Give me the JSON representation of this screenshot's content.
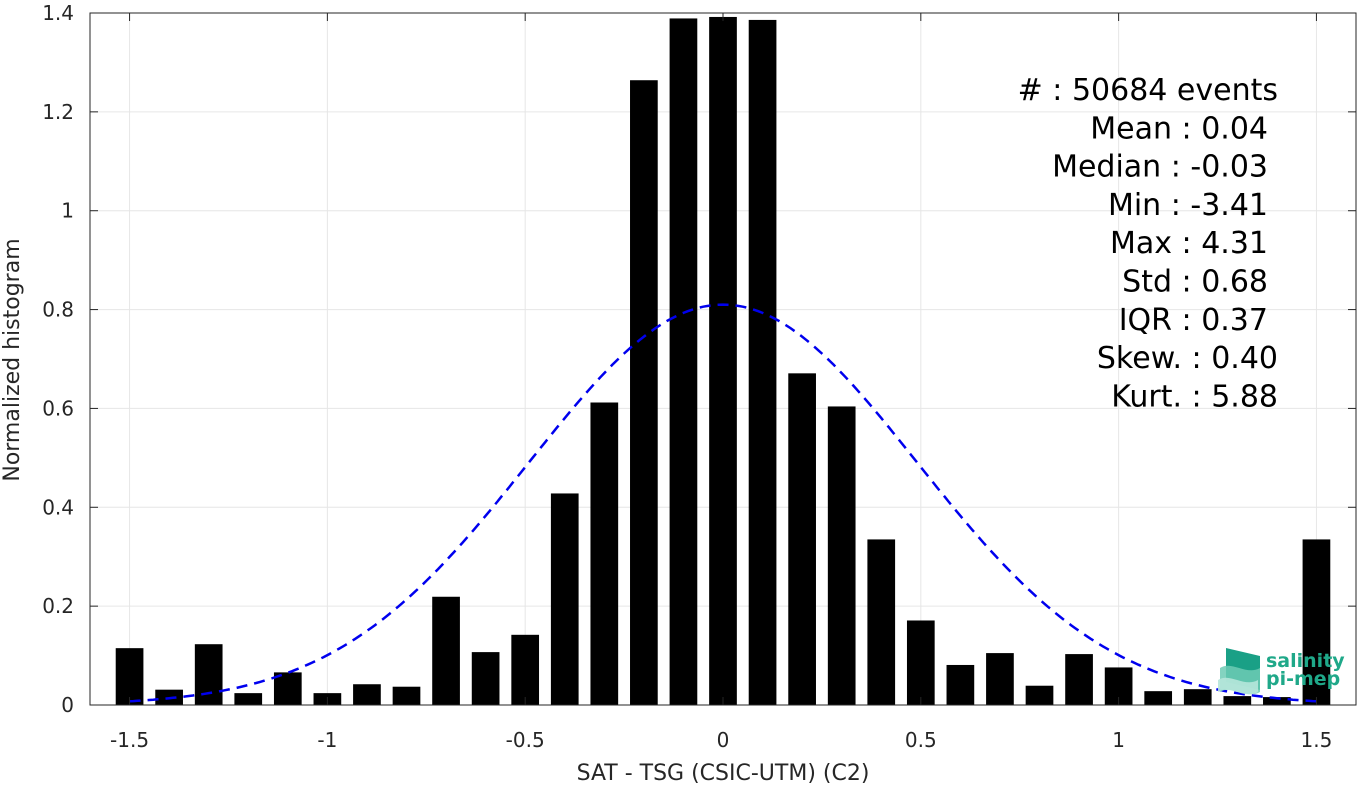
{
  "chart_data": {
    "type": "bar",
    "xlabel": "SAT - TSG (CSIC-UTM) (C2)",
    "ylabel": "Normalized histogram",
    "xlim": [
      -1.6,
      1.6
    ],
    "ylim": [
      0,
      1.4
    ],
    "xticks": [
      -1.5,
      -1,
      -0.5,
      0,
      0.5,
      1,
      1.5
    ],
    "xtick_labels": [
      "-1.5",
      "-1",
      "-0.5",
      "0",
      "0.5",
      "1",
      "1.5"
    ],
    "yticks": [
      0,
      0.2,
      0.4,
      0.6,
      0.8,
      1,
      1.2,
      1.4
    ],
    "ytick_labels": [
      "0",
      "0.2",
      "0.4",
      "0.6",
      "0.8",
      "1",
      "1.2",
      "1.4"
    ],
    "grid": true,
    "bar_width": 0.07,
    "bar_color": "#000000",
    "bars": {
      "x": [
        -1.5,
        -1.4,
        -1.3,
        -1.2,
        -1.1,
        -1.0,
        -0.9,
        -0.8,
        -0.7,
        -0.6,
        -0.5,
        -0.4,
        -0.3,
        -0.2,
        -0.1,
        0.0,
        0.1,
        0.2,
        0.3,
        0.4,
        0.5,
        0.6,
        0.7,
        0.8,
        0.9,
        1.0,
        1.1,
        1.2,
        1.3,
        1.4,
        1.5
      ],
      "values": [
        0.115,
        0.031,
        0.123,
        0.024,
        0.066,
        0.024,
        0.042,
        0.037,
        0.219,
        0.107,
        0.142,
        0.428,
        0.612,
        1.264,
        1.389,
        1.392,
        1.386,
        0.671,
        0.604,
        0.335,
        0.171,
        0.081,
        0.105,
        0.039,
        0.103,
        0.076,
        0.028,
        0.032,
        0.018,
        0.016,
        0.335
      ]
    },
    "fit_curve": {
      "type": "gaussian",
      "mean": 0.0,
      "std": 0.49,
      "peak": 0.81,
      "x_range": [
        -1.5,
        1.5
      ],
      "color": "#0000ee",
      "style": "dashed"
    },
    "stats": [
      {
        "label": "#  : 50684 events",
        "x": 1278
      },
      {
        "label": "Mean : 0.04",
        "x": 1268
      },
      {
        "label": "Median : -0.03",
        "x": 1268
      },
      {
        "label": "Min : -3.41",
        "x": 1268
      },
      {
        "label": "Max : 4.31",
        "x": 1268
      },
      {
        "label": "Std : 0.68",
        "x": 1268
      },
      {
        "label": "IQR : 0.37",
        "x": 1268
      },
      {
        "label": "Skew. : 0.40",
        "x": 1278
      },
      {
        "label": "Kurt. : 5.88",
        "x": 1278
      }
    ],
    "logo": {
      "line1": "salinity",
      "line2": "pi-mep",
      "color": "#1fa889"
    }
  }
}
